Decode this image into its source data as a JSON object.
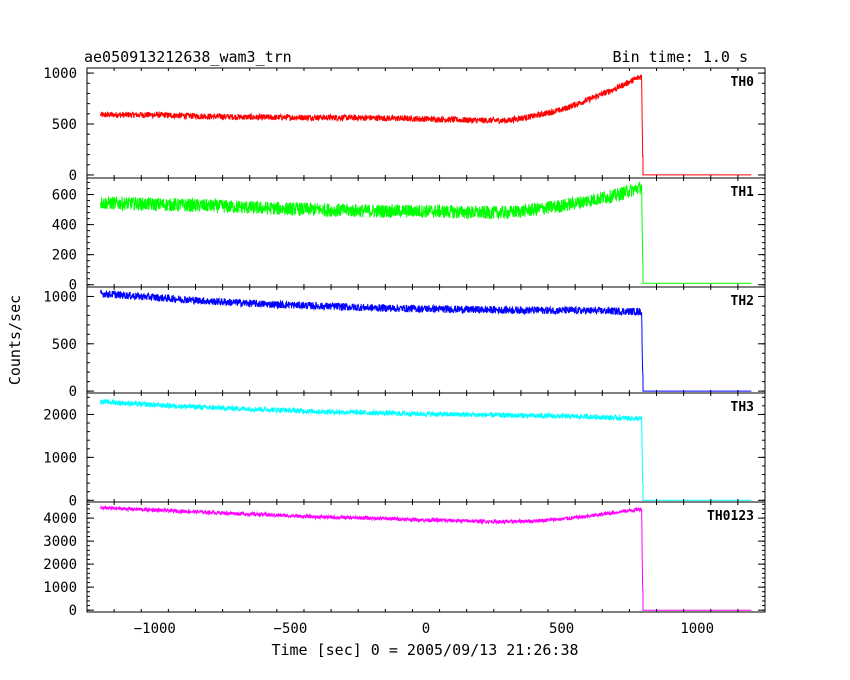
{
  "header": {
    "title": "ae050913212638_wam3_trn",
    "bin_time": "Bin time: 1.0 s"
  },
  "axes": {
    "xlabel": "Time [sec] 0 = 2005/09/13 21:26:38",
    "ylabel": "Counts/sec"
  },
  "chart_data": [
    {
      "type": "line",
      "name": "TH0",
      "color": "#ff0000",
      "xlim": [
        -1250,
        1250
      ],
      "ylim": [
        -30,
        1050
      ],
      "yticks": [
        0,
        500,
        1000
      ],
      "xticks": [
        -1000,
        -500,
        0,
        500,
        1000
      ],
      "trigger_drop_time": 800,
      "x": [
        -1200,
        -1000,
        -800,
        -600,
        -400,
        -200,
        0,
        200,
        300,
        400,
        500,
        600,
        700,
        795,
        800,
        1200
      ],
      "y": [
        590,
        590,
        575,
        565,
        565,
        560,
        550,
        535,
        535,
        580,
        640,
        740,
        850,
        970,
        0,
        0
      ],
      "noise": 30
    },
    {
      "type": "line",
      "name": "TH1",
      "color": "#00ff00",
      "xlim": [
        -1250,
        1250
      ],
      "ylim": [
        -15,
        710
      ],
      "yticks": [
        0,
        200,
        400,
        600
      ],
      "xticks": [
        -1000,
        -500,
        0,
        500,
        1000
      ],
      "trigger_drop_time": 800,
      "x": [
        -1200,
        -1000,
        -800,
        -600,
        -400,
        -200,
        0,
        200,
        300,
        400,
        500,
        600,
        700,
        795,
        800,
        1200
      ],
      "y": [
        545,
        535,
        525,
        510,
        500,
        490,
        490,
        480,
        480,
        500,
        525,
        560,
        595,
        650,
        10,
        10
      ],
      "noise": 45
    },
    {
      "type": "line",
      "name": "TH2",
      "color": "#0000ff",
      "xlim": [
        -1250,
        1250
      ],
      "ylim": [
        -20,
        1100
      ],
      "yticks": [
        0,
        500,
        1000
      ],
      "xticks": [
        -1000,
        -500,
        0,
        500,
        1000
      ],
      "trigger_drop_time": 800,
      "x": [
        -1200,
        -1000,
        -800,
        -600,
        -400,
        -200,
        0,
        200,
        400,
        600,
        795,
        800,
        1200
      ],
      "y": [
        1030,
        990,
        950,
        920,
        900,
        880,
        870,
        860,
        855,
        850,
        840,
        0,
        0
      ],
      "noise": 40
    },
    {
      "type": "line",
      "name": "TH3",
      "color": "#00ffff",
      "xlim": [
        -1250,
        1250
      ],
      "ylim": [
        -40,
        2500
      ],
      "yticks": [
        0,
        1000,
        2000
      ],
      "xticks": [
        -1000,
        -500,
        0,
        500,
        1000
      ],
      "trigger_drop_time": 800,
      "x": [
        -1200,
        -1000,
        -800,
        -600,
        -400,
        -200,
        0,
        200,
        400,
        600,
        795,
        800,
        1200
      ],
      "y": [
        2300,
        2220,
        2160,
        2120,
        2070,
        2040,
        2010,
        1990,
        1970,
        1950,
        1900,
        0,
        0
      ],
      "noise": 60
    },
    {
      "type": "line",
      "name": "TH0123",
      "color": "#ff00ff",
      "xlim": [
        -1250,
        1250
      ],
      "ylim": [
        -80,
        4700
      ],
      "yticks": [
        0,
        1000,
        2000,
        3000,
        4000
      ],
      "xticks": [
        -1000,
        -500,
        0,
        500,
        1000
      ],
      "trigger_drop_time": 800,
      "x": [
        -1200,
        -1000,
        -800,
        -600,
        -400,
        -200,
        0,
        200,
        300,
        400,
        500,
        600,
        700,
        795,
        800,
        1200
      ],
      "y": [
        4450,
        4350,
        4250,
        4150,
        4050,
        4000,
        3920,
        3860,
        3840,
        3880,
        3960,
        4080,
        4250,
        4400,
        0,
        0
      ],
      "noise": 80
    }
  ]
}
